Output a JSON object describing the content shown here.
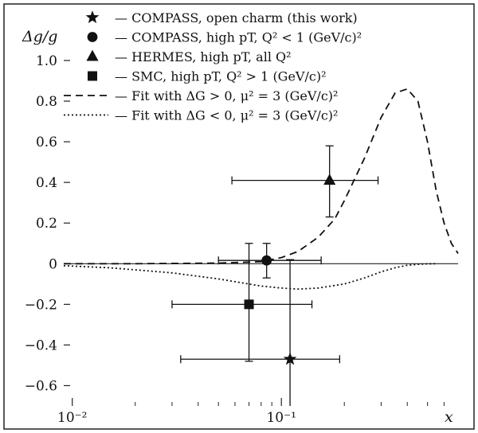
{
  "chart_data": {
    "type": "scatter",
    "xlabel": "x",
    "ylabel": "Δg/g",
    "x_scale": "log",
    "xlim": [
      0.0091,
      0.7
    ],
    "ylim": [
      -0.7,
      1.0
    ],
    "x_ticks": [
      {
        "value": 0.01,
        "label": "10⁻²"
      },
      {
        "value": 0.1,
        "label": "10⁻¹"
      }
    ],
    "y_ticks": [
      {
        "value": 1.0,
        "label": "1.0"
      },
      {
        "value": 0.8,
        "label": "0.8"
      },
      {
        "value": 0.6,
        "label": "0.6"
      },
      {
        "value": 0.4,
        "label": "0.4"
      },
      {
        "value": 0.2,
        "label": "0.2"
      },
      {
        "value": 0,
        "label": "0"
      },
      {
        "value": -0.2,
        "label": "−0.2"
      },
      {
        "value": -0.4,
        "label": "−0.4"
      },
      {
        "value": -0.6,
        "label": "−0.6"
      }
    ],
    "legend_position": "top-left",
    "points": [
      {
        "name": "— COMPASS, open charm (this work)",
        "marker": "star",
        "x": 0.11,
        "y": -0.47,
        "x_low": 0.033,
        "x_high": 0.19,
        "y_low": -0.7,
        "y_high": 0.02
      },
      {
        "name": "— COMPASS, high pT, Q² < 1 (GeV/c)²",
        "marker": "circle",
        "x": 0.085,
        "y": 0.016,
        "x_low": 0.05,
        "x_high": 0.155,
        "y_low": -0.07,
        "y_high": 0.1
      },
      {
        "name": "— HERMES, high pT, all Q²",
        "marker": "triangle",
        "x": 0.17,
        "y": 0.41,
        "x_low": 0.058,
        "x_high": 0.29,
        "y_low": 0.23,
        "y_high": 0.58
      },
      {
        "name": "— SMC, high pT, Q² > 1 (GeV/c)²",
        "marker": "square",
        "x": 0.07,
        "y": -0.2,
        "x_low": 0.03,
        "x_high": 0.14,
        "y_low": -0.48,
        "y_high": 0.1
      }
    ],
    "curves": [
      {
        "name": "— Fit with ΔG > 0, μ² = 3 (GeV/c)²",
        "style": "dashed",
        "x": [
          0.0091,
          0.02,
          0.05,
          0.08,
          0.1,
          0.12,
          0.15,
          0.18,
          0.2,
          0.25,
          0.3,
          0.35,
          0.4,
          0.45,
          0.5,
          0.55,
          0.6,
          0.65,
          0.7
        ],
        "y": [
          0.0,
          0.0,
          0.003,
          0.01,
          0.03,
          0.06,
          0.13,
          0.22,
          0.31,
          0.52,
          0.72,
          0.84,
          0.86,
          0.8,
          0.6,
          0.36,
          0.2,
          0.1,
          0.05
        ]
      },
      {
        "name": "— Fit with ΔG < 0, μ² = 3 (GeV/c)²",
        "style": "dotted",
        "x": [
          0.0091,
          0.015,
          0.02,
          0.03,
          0.05,
          0.08,
          0.1,
          0.12,
          0.15,
          0.2,
          0.25,
          0.3,
          0.35,
          0.4,
          0.45,
          0.5,
          0.55
        ],
        "y": [
          -0.01,
          -0.02,
          -0.03,
          -0.045,
          -0.075,
          -0.11,
          -0.12,
          -0.125,
          -0.12,
          -0.1,
          -0.07,
          -0.04,
          -0.02,
          -0.008,
          -0.003,
          -0.001,
          0.0
        ]
      }
    ]
  }
}
